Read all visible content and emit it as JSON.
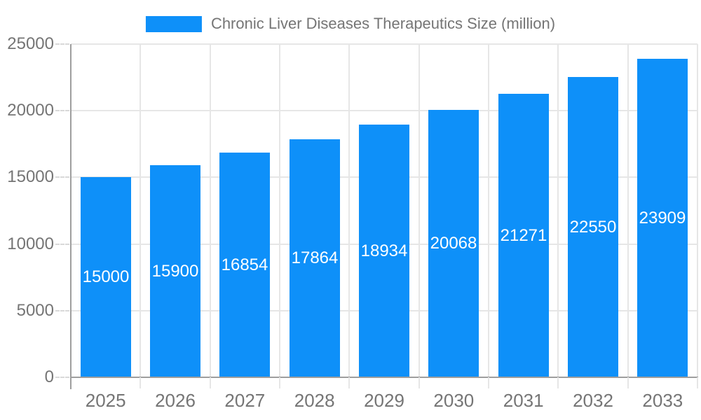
{
  "chart_data": {
    "type": "bar",
    "title": "Chronic Liver Diseases Therapeutics Size (million)",
    "legend_position": "top",
    "categories": [
      "2025",
      "2026",
      "2027",
      "2028",
      "2029",
      "2030",
      "2031",
      "2032",
      "2033"
    ],
    "series": [
      {
        "name": "Chronic Liver Diseases Therapeutics Size (million)",
        "values": [
          15000,
          15900,
          16854,
          17864,
          18934,
          20068,
          21271,
          22550,
          23909
        ]
      }
    ],
    "xlabel": "",
    "ylabel": "",
    "ylim": [
      0,
      25000
    ],
    "yticks": [
      0,
      5000,
      10000,
      15000,
      20000,
      25000
    ],
    "grid": true,
    "bar_color": "#0e90f9",
    "value_label_color": "#ffffff",
    "axis_text_color": "#757575",
    "gridline_color": "#e6e6e6",
    "axis_line_color": "#9e9e9e",
    "tick_color": "#d9d9d9"
  }
}
